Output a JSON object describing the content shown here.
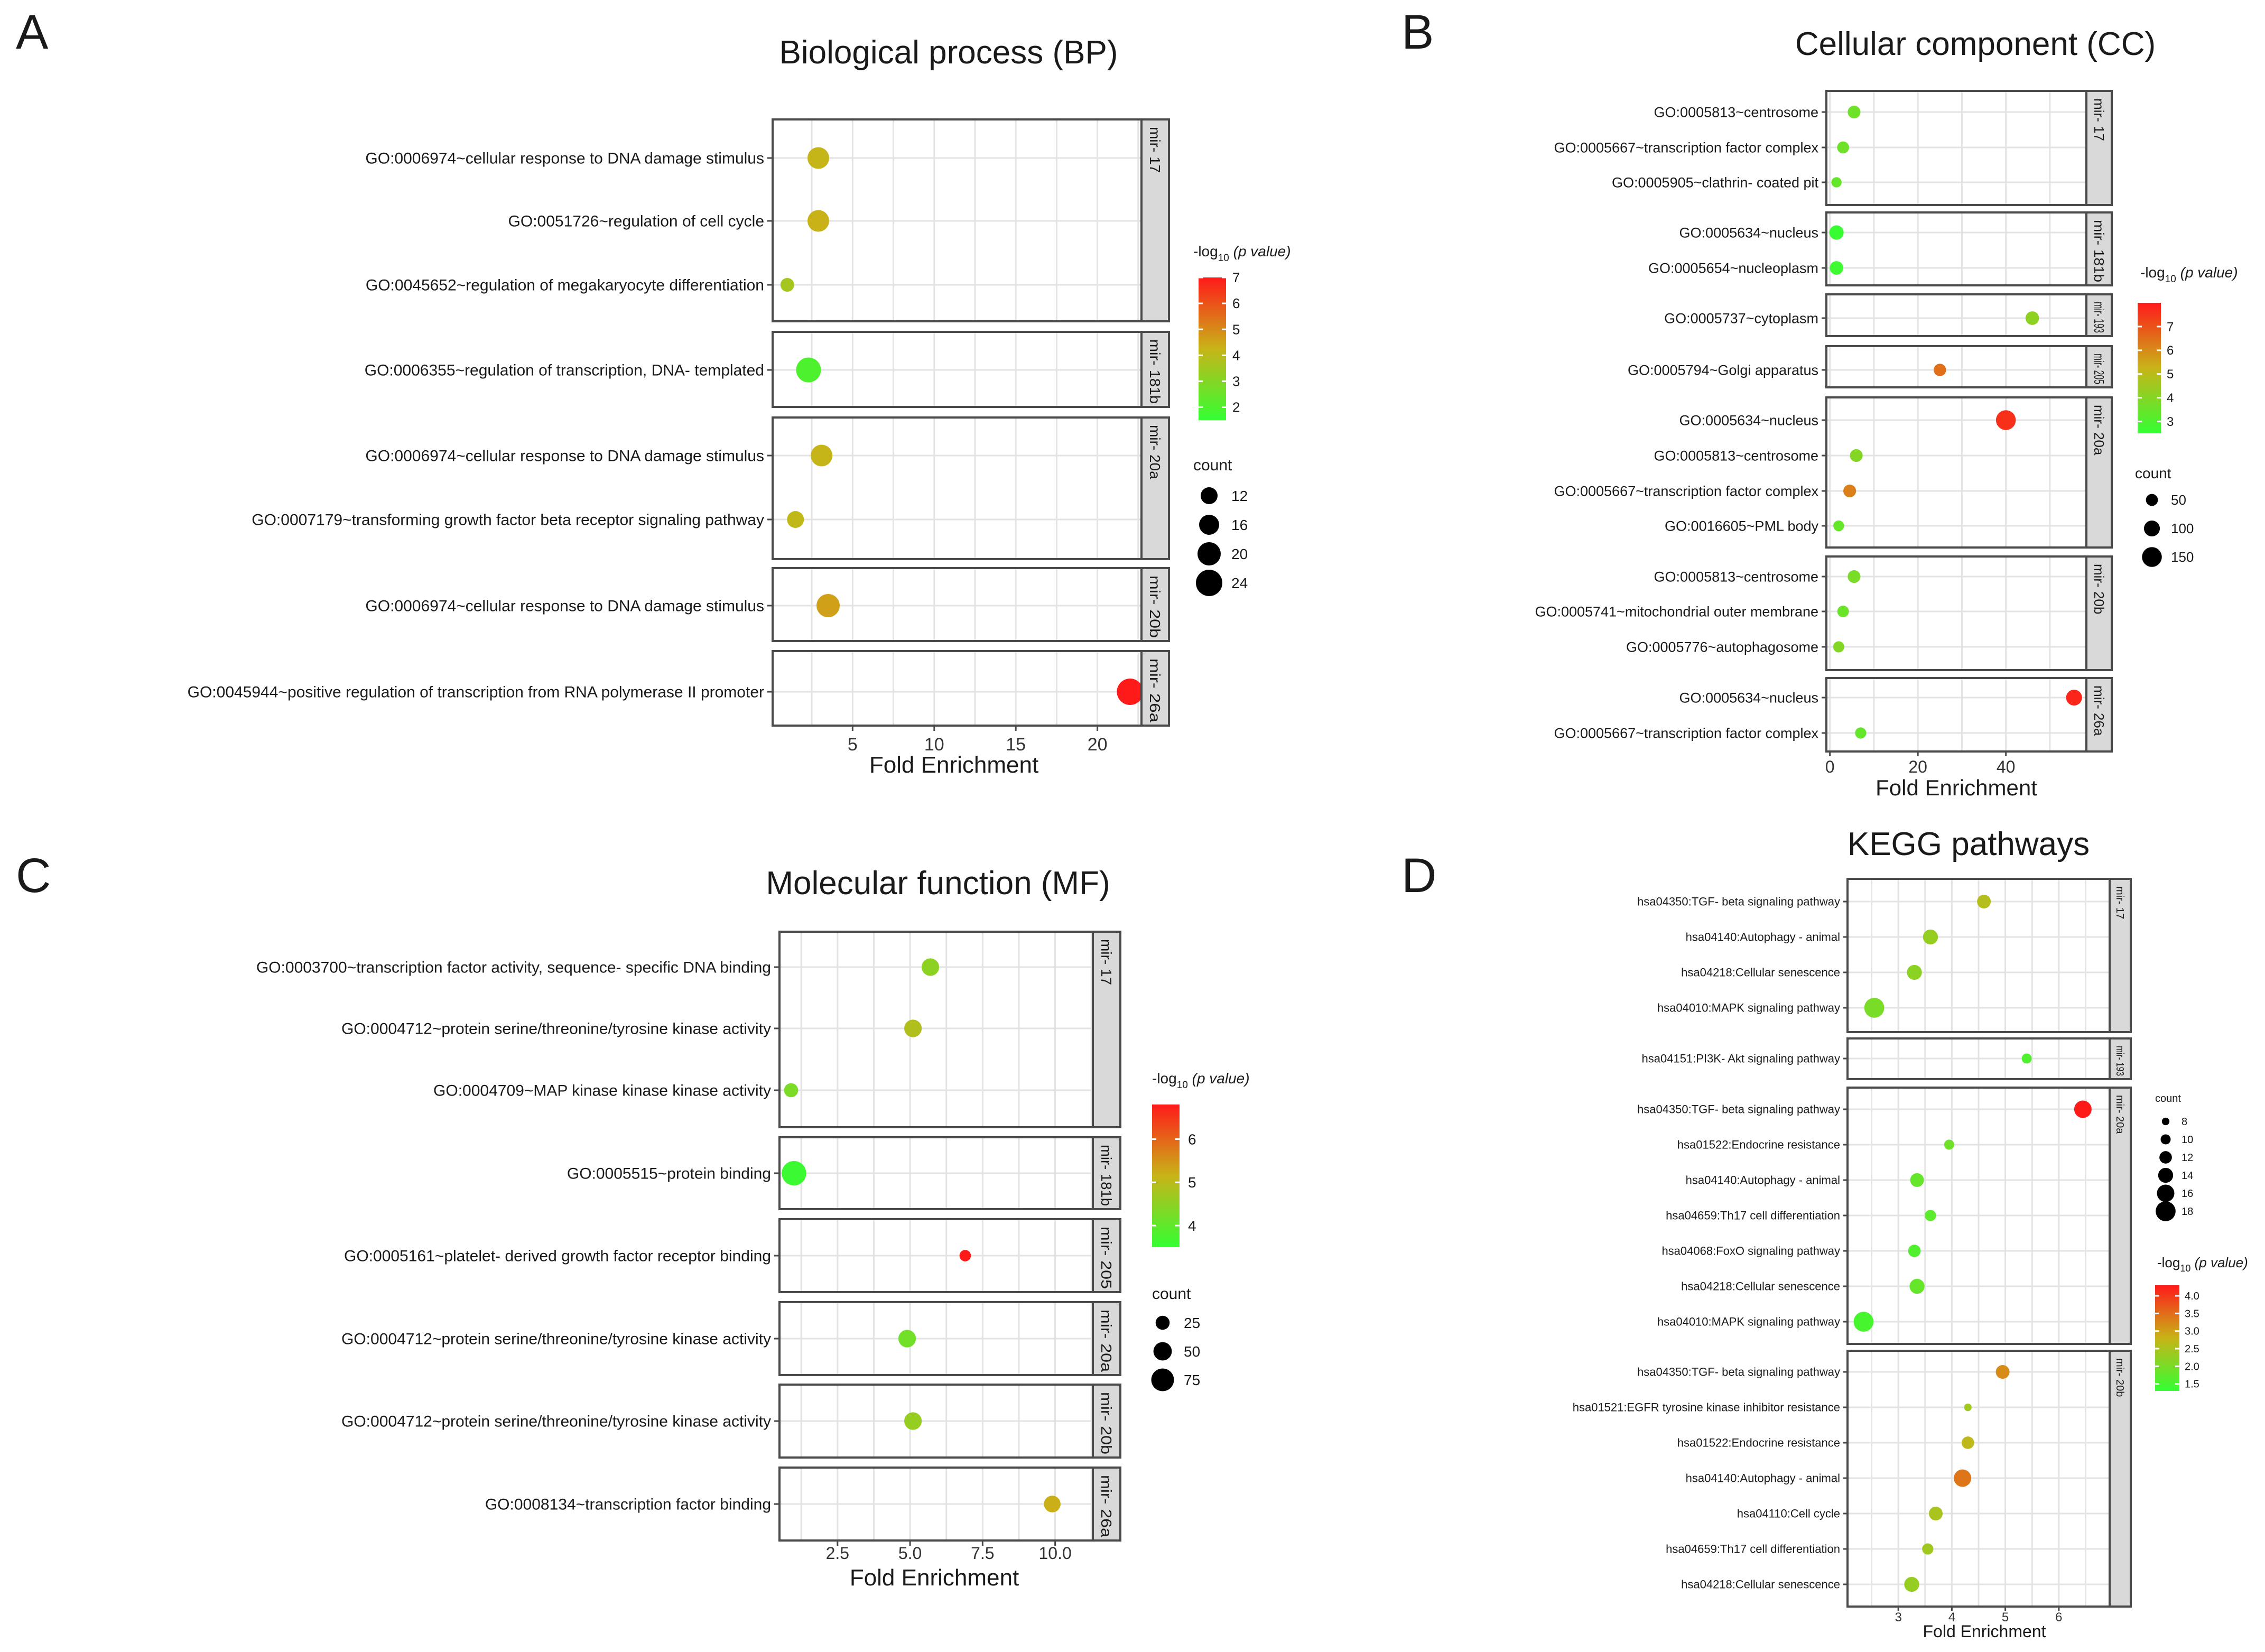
{
  "colors": {
    "low": "#33ff33",
    "mid": "#c8b418",
    "high": "#ff1a1a",
    "strip": "#d9d9d9"
  },
  "chart_data": [
    {
      "panel": "A",
      "type": "scatter",
      "title": "Biological process (BP)",
      "xlabel": "Fold Enrichment",
      "xticks": [
        5,
        10,
        15,
        20
      ],
      "xlim": [
        0.1,
        22.7
      ],
      "color_legend": {
        "title_pre": "-log",
        "title_sub": "10",
        "title_post": " (p value)",
        "ticks": [
          7,
          6,
          5,
          4,
          3,
          2
        ],
        "range": [
          1.5,
          7
        ]
      },
      "size_legend": {
        "title": "count",
        "values": [
          12,
          16,
          20,
          24
        ],
        "range": [
          8,
          24
        ]
      },
      "groups": [
        {
          "label": "mir- 17",
          "terms": [
            {
              "term": "GO:0006974~cellular response to DNA damage stimulus",
              "x": 2.9,
              "count": 18,
              "logp": 4.2
            },
            {
              "term": "GO:0051726~regulation of cell cycle",
              "x": 2.9,
              "count": 18,
              "logp": 4.3
            },
            {
              "term": "GO:0045652~regulation of megakaryocyte differentiation",
              "x": 1.0,
              "count": 8,
              "logp": 3.6
            }
          ]
        },
        {
          "label": "mir- 181b",
          "terms": [
            {
              "term": "GO:0006355~regulation of transcription, DNA- templated",
              "x": 2.3,
              "count": 22,
              "logp": 2.0
            }
          ]
        },
        {
          "label": "mir- 20a",
          "terms": [
            {
              "term": "GO:0006974~cellular response to DNA damage stimulus",
              "x": 3.1,
              "count": 18,
              "logp": 4.2
            },
            {
              "term": "GO:0007179~transforming growth factor beta receptor signaling pathway",
              "x": 1.5,
              "count": 12,
              "logp": 4.1
            }
          ]
        },
        {
          "label": "mir- 20b",
          "terms": [
            {
              "term": "GO:0006974~cellular response to DNA damage stimulus",
              "x": 3.5,
              "count": 20,
              "logp": 4.6
            }
          ]
        },
        {
          "label": "mir- 26a",
          "terms": [
            {
              "term": "GO:0045944~positive regulation of transcription from RNA polymerase II promoter",
              "x": 22.0,
              "count": 24,
              "logp": 7.0
            }
          ]
        }
      ]
    },
    {
      "panel": "B",
      "type": "scatter",
      "title": "Cellular component (CC)",
      "xlabel": "Fold Enrichment",
      "xticks": [
        0,
        20,
        40
      ],
      "xlim": [
        -0.8,
        58.3
      ],
      "color_legend": {
        "title_pre": "-log",
        "title_sub": "10",
        "title_post": " (p value)",
        "ticks": [
          7,
          6,
          5,
          4,
          3
        ],
        "range": [
          2.5,
          8
        ]
      },
      "size_legend": {
        "title": "count",
        "values": [
          50,
          100,
          150
        ],
        "range": [
          5,
          180
        ]
      },
      "groups": [
        {
          "label": "mir- 17",
          "terms": [
            {
              "term": "GO:0005813~centrosome",
              "x": 5.5,
              "count": 60,
              "logp": 3.6
            },
            {
              "term": "GO:0005667~transcription factor complex",
              "x": 3.0,
              "count": 50,
              "logp": 3.6
            },
            {
              "term": "GO:0005905~clathrin- coated pit",
              "x": 1.5,
              "count": 28,
              "logp": 3.4
            }
          ]
        },
        {
          "label": "mir- 181b",
          "terms": [
            {
              "term": "GO:0005634~nucleus",
              "x": 1.5,
              "count": 80,
              "logp": 2.6
            },
            {
              "term": "GO:0005654~nucleoplasm",
              "x": 1.5,
              "count": 70,
              "logp": 2.7
            }
          ]
        },
        {
          "label": "mir- 193",
          "terms": [
            {
              "term": "GO:0005737~cytoplasm",
              "x": 46.0,
              "count": 70,
              "logp": 4.2
            }
          ]
        },
        {
          "label": "mir- 205",
          "terms": [
            {
              "term": "GO:0005794~Golgi apparatus",
              "x": 25.0,
              "count": 55,
              "logp": 6.5
            }
          ]
        },
        {
          "label": "mir- 20a",
          "terms": [
            {
              "term": "GO:0005634~nucleus",
              "x": 40.0,
              "count": 150,
              "logp": 7.6
            },
            {
              "term": "GO:0005813~centrosome",
              "x": 6.0,
              "count": 60,
              "logp": 4.0
            },
            {
              "term": "GO:0005667~transcription factor complex",
              "x": 4.5,
              "count": 60,
              "logp": 6.2
            },
            {
              "term": "GO:0016605~PML body",
              "x": 2.0,
              "count": 35,
              "logp": 3.4
            }
          ]
        },
        {
          "label": "mir- 20b",
          "terms": [
            {
              "term": "GO:0005813~centrosome",
              "x": 5.5,
              "count": 60,
              "logp": 3.8
            },
            {
              "term": "GO:0005741~mitochondrial outer membrane",
              "x": 3.0,
              "count": 45,
              "logp": 3.5
            },
            {
              "term": "GO:0005776~autophagosome",
              "x": 2.0,
              "count": 40,
              "logp": 4.0
            }
          ]
        },
        {
          "label": "mir- 26a",
          "terms": [
            {
              "term": "GO:0005634~nucleus",
              "x": 55.5,
              "count": 100,
              "logp": 7.8
            },
            {
              "term": "GO:0005667~transcription factor complex",
              "x": 7.0,
              "count": 40,
              "logp": 3.4
            }
          ]
        }
      ]
    },
    {
      "panel": "C",
      "type": "scatter",
      "title": "Molecular function (MF)",
      "xlabel": "Fold Enrichment",
      "xticks": [
        2.5,
        5.0,
        7.5,
        10.0
      ],
      "xticklabels": [
        "2.5",
        "5.0",
        "7.5",
        "10.0"
      ],
      "xlim": [
        0.5,
        11.3
      ],
      "color_legend": {
        "title_pre": "-log",
        "title_sub": "10",
        "title_post": " (p value)",
        "ticks": [
          6,
          5,
          4
        ],
        "range": [
          3.5,
          6.8
        ]
      },
      "size_legend": {
        "title": "count",
        "values": [
          25,
          50,
          75
        ],
        "range": [
          5,
          90
        ]
      },
      "groups": [
        {
          "label": "mir- 17",
          "terms": [
            {
              "term": "GO:0003700~transcription factor activity, sequence- specific DNA binding",
              "x": 5.7,
              "count": 45,
              "logp": 4.5
            },
            {
              "term": "GO:0004712~protein serine/threonine/tyrosine kinase activity",
              "x": 5.1,
              "count": 45,
              "logp": 4.9
            },
            {
              "term": "GO:0004709~MAP kinase kinase kinase activity",
              "x": 0.9,
              "count": 25,
              "logp": 4.3
            }
          ]
        },
        {
          "label": "mir- 181b",
          "terms": [
            {
              "term": "GO:0005515~protein binding",
              "x": 1.0,
              "count": 85,
              "logp": 3.6
            }
          ]
        },
        {
          "label": "mir- 205",
          "terms": [
            {
              "term": "GO:0005161~platelet- derived growth factor receptor binding",
              "x": 6.9,
              "count": 10,
              "logp": 6.8
            }
          ]
        },
        {
          "label": "mir- 20a",
          "terms": [
            {
              "term": "GO:0004712~protein serine/threonine/tyrosine kinase activity",
              "x": 4.9,
              "count": 45,
              "logp": 4.2
            }
          ]
        },
        {
          "label": "mir- 20b",
          "terms": [
            {
              "term": "GO:0004712~protein serine/threonine/tyrosine kinase activity",
              "x": 5.1,
              "count": 45,
              "logp": 4.6
            }
          ]
        },
        {
          "label": "mir- 26a",
          "terms": [
            {
              "term": "GO:0008134~transcription factor binding",
              "x": 9.9,
              "count": 40,
              "logp": 5.2
            }
          ]
        }
      ]
    },
    {
      "panel": "D",
      "type": "scatter",
      "title": "KEGG pathways",
      "xlabel": "Fold Enrichment",
      "xticks": [
        3,
        4,
        5,
        6
      ],
      "xlim": [
        2.05,
        6.95
      ],
      "color_legend": {
        "title_pre": "-log",
        "title_sub": "10",
        "title_post": " (p value)",
        "ticks": [
          4.0,
          3.5,
          3.0,
          2.5,
          2.0,
          1.5
        ],
        "ticklabels": [
          "4.0",
          "3.5",
          "3.0",
          "2.5",
          "2.0",
          "1.5"
        ],
        "range": [
          1.3,
          4.3
        ]
      },
      "size_legend": {
        "title": "count",
        "values": [
          8,
          10,
          12,
          14,
          16,
          18
        ],
        "range": [
          7,
          19
        ]
      },
      "groups": [
        {
          "label": "mir- 17",
          "terms": [
            {
              "term": "hsa04350:TGF- beta signaling pathway",
              "x": 4.6,
              "count": 13,
              "logp": 2.6
            },
            {
              "term": "hsa04140:Autophagy -  animal",
              "x": 3.6,
              "count": 14,
              "logp": 2.3
            },
            {
              "term": "hsa04218:Cellular senescence",
              "x": 3.3,
              "count": 14,
              "logp": 2.2
            },
            {
              "term": "hsa04010:MAPK signaling pathway",
              "x": 2.55,
              "count": 18,
              "logp": 2.0
            }
          ]
        },
        {
          "label": "mir- 193",
          "terms": [
            {
              "term": "hsa04151:PI3K- Akt signaling pathway",
              "x": 5.4,
              "count": 10,
              "logp": 1.6
            }
          ]
        },
        {
          "label": "mir- 20a",
          "terms": [
            {
              "term": "hsa04350:TGF- beta signaling pathway",
              "x": 6.45,
              "count": 16,
              "logp": 4.3
            },
            {
              "term": "hsa01522:Endocrine resistance",
              "x": 3.95,
              "count": 10,
              "logp": 1.9
            },
            {
              "term": "hsa04140:Autophagy -  animal",
              "x": 3.35,
              "count": 13,
              "logp": 1.8
            },
            {
              "term": "hsa04659:Th17 cell differentiation",
              "x": 3.6,
              "count": 11,
              "logp": 1.7
            },
            {
              "term": "hsa04068:FoxO signaling pathway",
              "x": 3.3,
              "count": 12,
              "logp": 1.6
            },
            {
              "term": "hsa04218:Cellular senescence",
              "x": 3.35,
              "count": 14,
              "logp": 1.8
            },
            {
              "term": "hsa04010:MAPK signaling pathway",
              "x": 2.35,
              "count": 18,
              "logp": 1.5
            }
          ]
        },
        {
          "label": "mir- 20b",
          "terms": [
            {
              "term": "hsa04350:TGF- beta signaling pathway",
              "x": 4.95,
              "count": 13,
              "logp": 3.2
            },
            {
              "term": "hsa01521:EGFR tyrosine kinase inhibitor resistance",
              "x": 4.3,
              "count": 8,
              "logp": 2.4
            },
            {
              "term": "hsa01522:Endocrine resistance",
              "x": 4.3,
              "count": 12,
              "logp": 2.7
            },
            {
              "term": "hsa04140:Autophagy -  animal",
              "x": 4.2,
              "count": 16,
              "logp": 3.4
            },
            {
              "term": "hsa04110:Cell cycle",
              "x": 3.7,
              "count": 13,
              "logp": 2.5
            },
            {
              "term": "hsa04659:Th17 cell differentiation",
              "x": 3.55,
              "count": 11,
              "logp": 2.4
            },
            {
              "term": "hsa04218:Cellular senescence",
              "x": 3.25,
              "count": 14,
              "logp": 2.3
            }
          ]
        }
      ]
    }
  ]
}
